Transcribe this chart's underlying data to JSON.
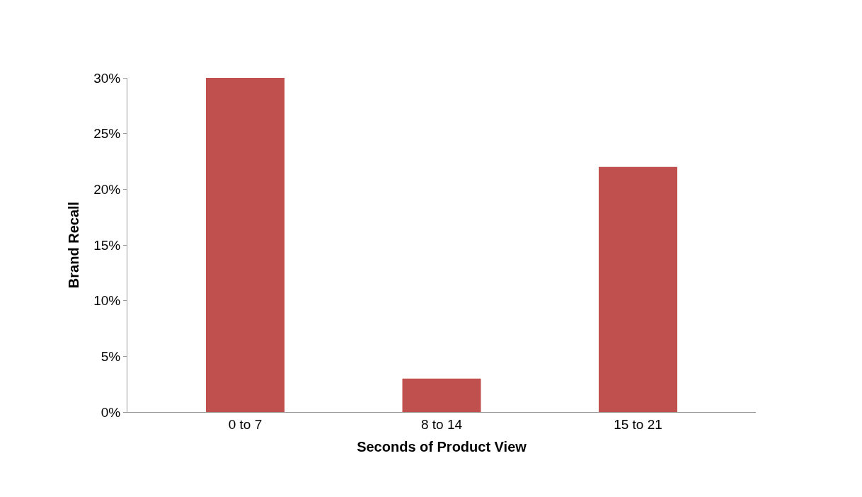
{
  "chart_data": {
    "type": "bar",
    "xlabel": "Seconds of Product View",
    "ylabel": "Brand Recall",
    "categories": [
      "0 to 7",
      "8 to 14",
      "15 to 21"
    ],
    "values": [
      0.3,
      0.03,
      0.22
    ],
    "color": "#c0504d",
    "ylim": [
      0,
      0.3
    ],
    "yticks": [
      {
        "value": 0,
        "label": "0%"
      },
      {
        "value": 0.05,
        "label": "5%"
      },
      {
        "value": 0.1,
        "label": "10%"
      },
      {
        "value": 0.15,
        "label": "15%"
      },
      {
        "value": 0.2,
        "label": "20%"
      },
      {
        "value": 0.25,
        "label": "25%"
      },
      {
        "value": 0.3,
        "label": "30%"
      }
    ],
    "grid": false,
    "legend": false
  }
}
